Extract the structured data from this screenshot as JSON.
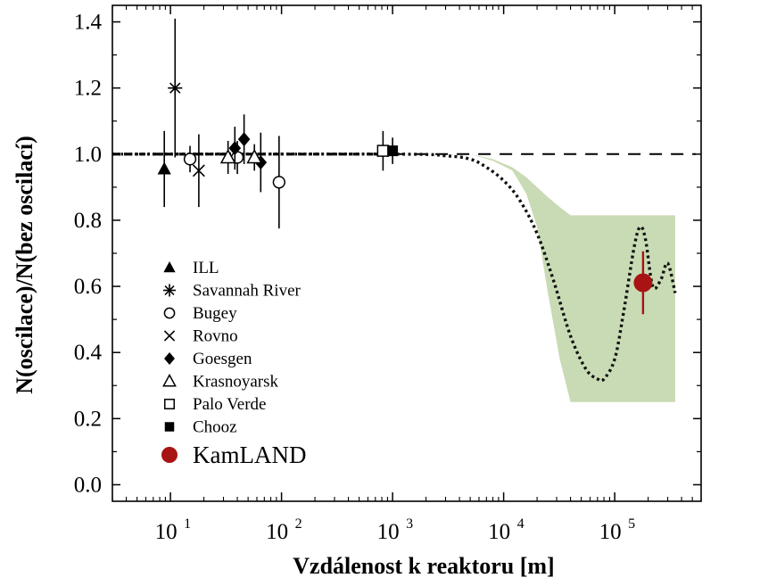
{
  "chart_data": {
    "type": "scatter",
    "xlabel": "Vzdálenost k reaktoru [m]",
    "ylabel": "N(oscilace)/N(bez oscilací)",
    "xscale": "log",
    "xlim": [
      3,
      600000
    ],
    "ylim": [
      -0.05,
      1.45
    ],
    "x_ticks": [
      10,
      100,
      1000,
      10000,
      100000
    ],
    "x_tick_labels": [
      "10",
      "10",
      "10",
      "10",
      "10"
    ],
    "x_tick_exponents": [
      "1",
      "2",
      "3",
      "4",
      "5"
    ],
    "y_ticks": [
      0.0,
      0.2,
      0.4,
      0.6,
      0.8,
      1.0,
      1.2,
      1.4
    ],
    "y_tick_labels": [
      "0.0",
      "0.2",
      "0.4",
      "0.6",
      "0.8",
      "1.0",
      "1.2",
      "1.4"
    ],
    "reference_line": {
      "y": 1.0,
      "style": "dashed"
    },
    "legend_position": "lower-left",
    "colors": {
      "band": "#c9dbb4",
      "kamland": "#a81414",
      "markers": "#000000"
    },
    "series": [
      {
        "name": "ILL",
        "marker": "triangle-filled",
        "points": [
          {
            "x": 8.8,
            "y": 0.955,
            "err": 0.115
          }
        ]
      },
      {
        "name": "Savannah River",
        "marker": "asterisk",
        "points": [
          {
            "x": 11,
            "y": 1.2,
            "err": 0.21
          }
        ]
      },
      {
        "name": "Bugey",
        "marker": "circle-open",
        "points": [
          {
            "x": 15,
            "y": 0.985,
            "err": 0.04
          },
          {
            "x": 40,
            "y": 0.99,
            "err": 0.05
          },
          {
            "x": 95,
            "y": 0.915,
            "err": 0.14
          }
        ]
      },
      {
        "name": "Rovno",
        "marker": "x",
        "points": [
          {
            "x": 18,
            "y": 0.95,
            "err": 0.11
          }
        ]
      },
      {
        "name": "Goesgen",
        "marker": "diamond-filled",
        "points": [
          {
            "x": 38,
            "y": 1.018,
            "err": 0.065
          },
          {
            "x": 46,
            "y": 1.045,
            "err": 0.075
          },
          {
            "x": 65,
            "y": 0.975,
            "err": 0.09
          }
        ]
      },
      {
        "name": "Krasnoyarsk",
        "marker": "triangle-open",
        "points": [
          {
            "x": 33,
            "y": 0.99,
            "err": 0.05
          },
          {
            "x": 57,
            "y": 0.99,
            "err": 0.04
          }
        ]
      },
      {
        "name": "Palo Verde",
        "marker": "square-open",
        "points": [
          {
            "x": 820,
            "y": 1.01,
            "err": 0.06
          }
        ]
      },
      {
        "name": "Chooz",
        "marker": "square-filled",
        "points": [
          {
            "x": 1000,
            "y": 1.01,
            "err": 0.04
          }
        ]
      },
      {
        "name": "KamLAND",
        "marker": "circle-filled-red",
        "points": [
          {
            "x": 180000,
            "y": 0.611,
            "err": 0.095
          }
        ]
      }
    ],
    "prediction_curve": {
      "style": "dotted",
      "x": [
        3,
        1000,
        3000,
        5000,
        7000,
        10000,
        14000,
        20000,
        28000,
        40000,
        55000,
        70000,
        80000,
        100000,
        120000,
        150000,
        170000,
        190000,
        220000,
        260000,
        300000,
        350000
      ],
      "y": [
        1.0,
        1.0,
        0.995,
        0.985,
        0.96,
        0.92,
        0.86,
        0.76,
        0.62,
        0.45,
        0.35,
        0.32,
        0.32,
        0.38,
        0.52,
        0.72,
        0.78,
        0.74,
        0.6,
        0.62,
        0.67,
        0.58
      ]
    },
    "band": {
      "x": [
        5000,
        8000,
        12000,
        16000,
        20000,
        25000,
        32000,
        40000,
        350000
      ],
      "upper": [
        1.0,
        0.985,
        0.96,
        0.93,
        0.9,
        0.87,
        0.84,
        0.815,
        0.815
      ],
      "lower": [
        1.0,
        0.98,
        0.95,
        0.88,
        0.78,
        0.58,
        0.38,
        0.25,
        0.25
      ]
    }
  }
}
